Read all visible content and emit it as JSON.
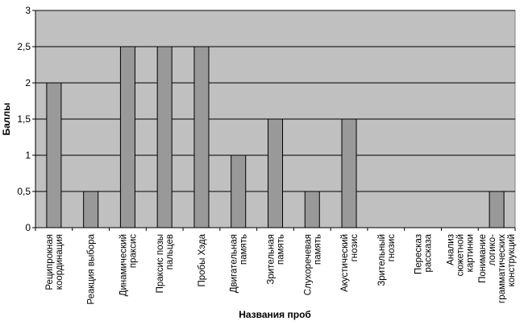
{
  "chart_data": {
    "type": "bar",
    "xlabel": "Названия проб",
    "ylabel": "Баллы",
    "ylim": [
      0,
      3
    ],
    "yticks": [
      {
        "value": 0,
        "label": "0"
      },
      {
        "value": 0.5,
        "label": "0,5"
      },
      {
        "value": 1,
        "label": "1"
      },
      {
        "value": 1.5,
        "label": "1,5"
      },
      {
        "value": 2,
        "label": "2"
      },
      {
        "value": 2.5,
        "label": "2,5"
      },
      {
        "value": 3,
        "label": "3"
      }
    ],
    "grid": true,
    "legend": "none",
    "plot_background": "#c0c0c0",
    "bar_color": "#999999",
    "categories": [
      [
        "Реципрокная",
        "координация"
      ],
      [
        "Реакция выбора"
      ],
      [
        "Динамический",
        "праксис"
      ],
      [
        "Праксис позы",
        "пальцев"
      ],
      [
        "Пробы Хэда"
      ],
      [
        "Двигательная",
        "память"
      ],
      [
        "Зрительная",
        "память"
      ],
      [
        "Слухоречевая",
        "память"
      ],
      [
        "Акустический",
        "гнозис"
      ],
      [
        "Зрительный",
        "гнозис"
      ],
      [
        "Пересказ",
        "рассказа"
      ],
      [
        "Анализ",
        "сюжетной",
        "картинки"
      ],
      [
        "Понимание",
        "логико-",
        "грамматических",
        "конструкций"
      ]
    ],
    "values": [
      2,
      0.5,
      2.5,
      2.5,
      2.5,
      1,
      1.5,
      0.5,
      1.5,
      0,
      0,
      0,
      0.5
    ]
  }
}
